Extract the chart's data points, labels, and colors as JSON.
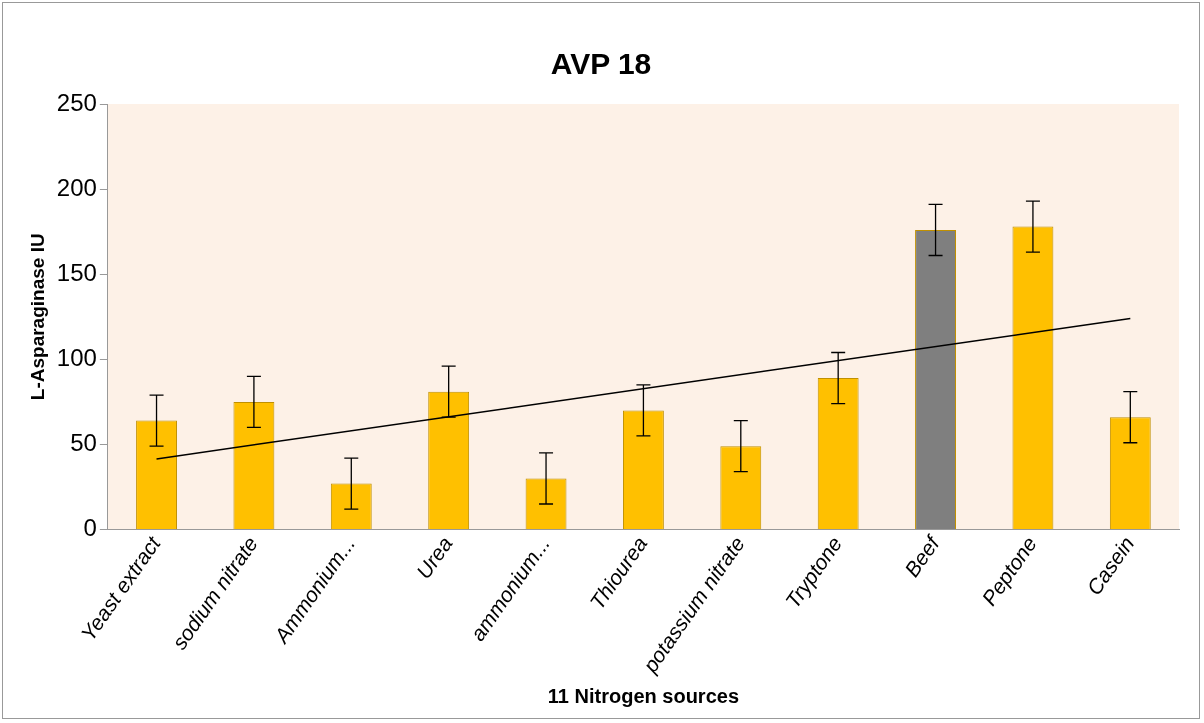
{
  "chart_data": {
    "type": "bar",
    "title": "AVP 18",
    "xlabel": "11 Nitrogen sources",
    "ylabel": "L-Asparaginase IU",
    "categories": [
      "Yeast extract",
      "sodium nitrate",
      "Ammonium...",
      "Urea",
      "ammonium...",
      "Thiourea",
      "potassium nitrate",
      "Tryptone",
      "Beef",
      "Peptone",
      "Casein"
    ],
    "series": [
      {
        "colors": [
          "#ffc000",
          "#ffc000",
          "#ffc000",
          "#ffc000",
          "#ffc000",
          "#ffc000",
          "#ffc000",
          "#ffc000",
          "#7f7f7f",
          "#ffc000",
          "#ffc000"
        ],
        "values": [
          64,
          75,
          27,
          81,
          30,
          70,
          49,
          89,
          176,
          178,
          66
        ],
        "errors": [
          15,
          15,
          15,
          15,
          15,
          15,
          15,
          15,
          15,
          15,
          15
        ]
      },
      {
        "type": "line",
        "color": "#000000",
        "x": [
          "Yeast extract",
          "Casein"
        ],
        "values": [
          41.5,
          124
        ]
      }
    ],
    "ylim": [
      0,
      250
    ],
    "yticks": [
      0,
      50,
      100,
      150,
      200,
      250
    ],
    "grid": false,
    "legend": false
  }
}
